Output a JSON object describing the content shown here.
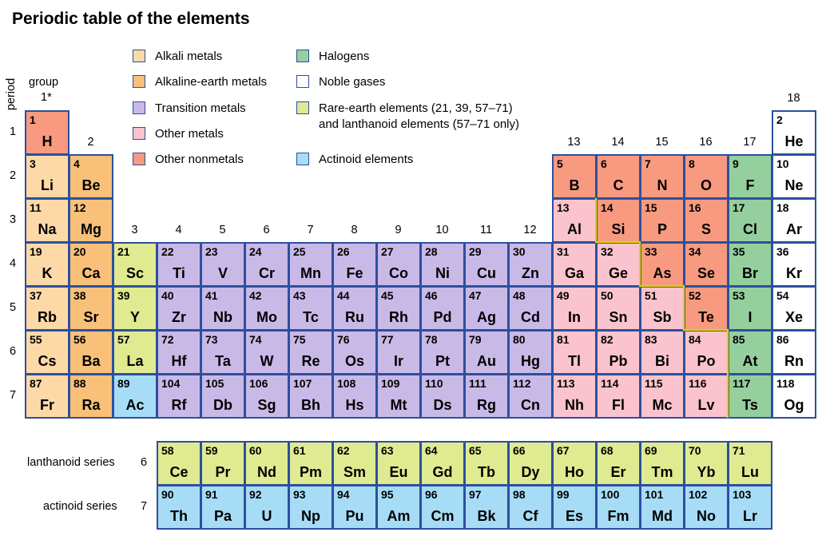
{
  "title": "Periodic table of the elements",
  "axis": {
    "period_label": "period",
    "group_label": "group",
    "group1_label": "1*"
  },
  "colors": {
    "alkali": "#fdd9a8",
    "alkaline": "#f8c079",
    "transition": "#c9b9e7",
    "other_metal": "#fbc3cd",
    "nonmetal": "#f79a80",
    "halogen": "#95cf9e",
    "noble": "#ffffff",
    "rare_earth": "#e0ea90",
    "actinoid": "#a7dcf6",
    "border": "#2d4f9e",
    "staircase": "#e5d000"
  },
  "legend": [
    {
      "cat": "alkali",
      "label": "Alkali metals"
    },
    {
      "cat": "alkaline",
      "label": "Alkaline-earth metals"
    },
    {
      "cat": "transition",
      "label": "Transition metals"
    },
    {
      "cat": "other_metal",
      "label": "Other metals"
    },
    {
      "cat": "nonmetal",
      "label": "Other nonmetals"
    },
    {
      "cat": "halogen",
      "label": "Halogens"
    },
    {
      "cat": "noble",
      "label": "Noble gases"
    },
    {
      "cat": "rare_earth",
      "label": "Rare-earth elements (21, 39, 57–71)",
      "label2": "and lanthanoid elements (57–71 only)"
    },
    {
      "cat": "actinoid",
      "label": "Actinoid elements"
    }
  ],
  "group_labels": [
    "2",
    "3",
    "4",
    "5",
    "6",
    "7",
    "8",
    "9",
    "10",
    "11",
    "12",
    "13",
    "14",
    "15",
    "16",
    "17",
    "18"
  ],
  "period_labels": [
    "1",
    "2",
    "3",
    "4",
    "5",
    "6",
    "7"
  ],
  "series_labels": {
    "lanthanoid": "lanthanoid series",
    "lanthanoid_period": "6",
    "actinoid": "actinoid series",
    "actinoid_period": "7"
  },
  "elements": [
    {
      "n": 1,
      "s": "H",
      "row": 1,
      "col": 1,
      "cat": "nonmetal"
    },
    {
      "n": 2,
      "s": "He",
      "row": 1,
      "col": 18,
      "cat": "noble"
    },
    {
      "n": 3,
      "s": "Li",
      "row": 2,
      "col": 1,
      "cat": "alkali"
    },
    {
      "n": 4,
      "s": "Be",
      "row": 2,
      "col": 2,
      "cat": "alkaline"
    },
    {
      "n": 5,
      "s": "B",
      "row": 2,
      "col": 13,
      "cat": "nonmetal"
    },
    {
      "n": 6,
      "s": "C",
      "row": 2,
      "col": 14,
      "cat": "nonmetal"
    },
    {
      "n": 7,
      "s": "N",
      "row": 2,
      "col": 15,
      "cat": "nonmetal"
    },
    {
      "n": 8,
      "s": "O",
      "row": 2,
      "col": 16,
      "cat": "nonmetal"
    },
    {
      "n": 9,
      "s": "F",
      "row": 2,
      "col": 17,
      "cat": "halogen"
    },
    {
      "n": 10,
      "s": "Ne",
      "row": 2,
      "col": 18,
      "cat": "noble"
    },
    {
      "n": 11,
      "s": "Na",
      "row": 3,
      "col": 1,
      "cat": "alkali"
    },
    {
      "n": 12,
      "s": "Mg",
      "row": 3,
      "col": 2,
      "cat": "alkaline"
    },
    {
      "n": 13,
      "s": "Al",
      "row": 3,
      "col": 13,
      "cat": "other_metal"
    },
    {
      "n": 14,
      "s": "Si",
      "row": 3,
      "col": 14,
      "cat": "nonmetal"
    },
    {
      "n": 15,
      "s": "P",
      "row": 3,
      "col": 15,
      "cat": "nonmetal"
    },
    {
      "n": 16,
      "s": "S",
      "row": 3,
      "col": 16,
      "cat": "nonmetal"
    },
    {
      "n": 17,
      "s": "Cl",
      "row": 3,
      "col": 17,
      "cat": "halogen"
    },
    {
      "n": 18,
      "s": "Ar",
      "row": 3,
      "col": 18,
      "cat": "noble"
    },
    {
      "n": 19,
      "s": "K",
      "row": 4,
      "col": 1,
      "cat": "alkali"
    },
    {
      "n": 20,
      "s": "Ca",
      "row": 4,
      "col": 2,
      "cat": "alkaline"
    },
    {
      "n": 21,
      "s": "Sc",
      "row": 4,
      "col": 3,
      "cat": "rare_earth"
    },
    {
      "n": 22,
      "s": "Ti",
      "row": 4,
      "col": 4,
      "cat": "transition"
    },
    {
      "n": 23,
      "s": "V",
      "row": 4,
      "col": 5,
      "cat": "transition"
    },
    {
      "n": 24,
      "s": "Cr",
      "row": 4,
      "col": 6,
      "cat": "transition"
    },
    {
      "n": 25,
      "s": "Mn",
      "row": 4,
      "col": 7,
      "cat": "transition"
    },
    {
      "n": 26,
      "s": "Fe",
      "row": 4,
      "col": 8,
      "cat": "transition"
    },
    {
      "n": 27,
      "s": "Co",
      "row": 4,
      "col": 9,
      "cat": "transition"
    },
    {
      "n": 28,
      "s": "Ni",
      "row": 4,
      "col": 10,
      "cat": "transition"
    },
    {
      "n": 29,
      "s": "Cu",
      "row": 4,
      "col": 11,
      "cat": "transition"
    },
    {
      "n": 30,
      "s": "Zn",
      "row": 4,
      "col": 12,
      "cat": "transition"
    },
    {
      "n": 31,
      "s": "Ga",
      "row": 4,
      "col": 13,
      "cat": "other_metal"
    },
    {
      "n": 32,
      "s": "Ge",
      "row": 4,
      "col": 14,
      "cat": "other_metal"
    },
    {
      "n": 33,
      "s": "As",
      "row": 4,
      "col": 15,
      "cat": "nonmetal"
    },
    {
      "n": 34,
      "s": "Se",
      "row": 4,
      "col": 16,
      "cat": "nonmetal"
    },
    {
      "n": 35,
      "s": "Br",
      "row": 4,
      "col": 17,
      "cat": "halogen"
    },
    {
      "n": 36,
      "s": "Kr",
      "row": 4,
      "col": 18,
      "cat": "noble"
    },
    {
      "n": 37,
      "s": "Rb",
      "row": 5,
      "col": 1,
      "cat": "alkali"
    },
    {
      "n": 38,
      "s": "Sr",
      "row": 5,
      "col": 2,
      "cat": "alkaline"
    },
    {
      "n": 39,
      "s": "Y",
      "row": 5,
      "col": 3,
      "cat": "rare_earth"
    },
    {
      "n": 40,
      "s": "Zr",
      "row": 5,
      "col": 4,
      "cat": "transition"
    },
    {
      "n": 41,
      "s": "Nb",
      "row": 5,
      "col": 5,
      "cat": "transition"
    },
    {
      "n": 42,
      "s": "Mo",
      "row": 5,
      "col": 6,
      "cat": "transition"
    },
    {
      "n": 43,
      "s": "Tc",
      "row": 5,
      "col": 7,
      "cat": "transition"
    },
    {
      "n": 44,
      "s": "Ru",
      "row": 5,
      "col": 8,
      "cat": "transition"
    },
    {
      "n": 45,
      "s": "Rh",
      "row": 5,
      "col": 9,
      "cat": "transition"
    },
    {
      "n": 46,
      "s": "Pd",
      "row": 5,
      "col": 10,
      "cat": "transition"
    },
    {
      "n": 47,
      "s": "Ag",
      "row": 5,
      "col": 11,
      "cat": "transition"
    },
    {
      "n": 48,
      "s": "Cd",
      "row": 5,
      "col": 12,
      "cat": "transition"
    },
    {
      "n": 49,
      "s": "In",
      "row": 5,
      "col": 13,
      "cat": "other_metal"
    },
    {
      "n": 50,
      "s": "Sn",
      "row": 5,
      "col": 14,
      "cat": "other_metal"
    },
    {
      "n": 51,
      "s": "Sb",
      "row": 5,
      "col": 15,
      "cat": "other_metal"
    },
    {
      "n": 52,
      "s": "Te",
      "row": 5,
      "col": 16,
      "cat": "nonmetal"
    },
    {
      "n": 53,
      "s": "I",
      "row": 5,
      "col": 17,
      "cat": "halogen"
    },
    {
      "n": 54,
      "s": "Xe",
      "row": 5,
      "col": 18,
      "cat": "noble"
    },
    {
      "n": 55,
      "s": "Cs",
      "row": 6,
      "col": 1,
      "cat": "alkali"
    },
    {
      "n": 56,
      "s": "Ba",
      "row": 6,
      "col": 2,
      "cat": "alkaline"
    },
    {
      "n": 57,
      "s": "La",
      "row": 6,
      "col": 3,
      "cat": "rare_earth"
    },
    {
      "n": 72,
      "s": "Hf",
      "row": 6,
      "col": 4,
      "cat": "transition"
    },
    {
      "n": 73,
      "s": "Ta",
      "row": 6,
      "col": 5,
      "cat": "transition"
    },
    {
      "n": 74,
      "s": "W",
      "row": 6,
      "col": 6,
      "cat": "transition"
    },
    {
      "n": 75,
      "s": "Re",
      "row": 6,
      "col": 7,
      "cat": "transition"
    },
    {
      "n": 76,
      "s": "Os",
      "row": 6,
      "col": 8,
      "cat": "transition"
    },
    {
      "n": 77,
      "s": "Ir",
      "row": 6,
      "col": 9,
      "cat": "transition"
    },
    {
      "n": 78,
      "s": "Pt",
      "row": 6,
      "col": 10,
      "cat": "transition"
    },
    {
      "n": 79,
      "s": "Au",
      "row": 6,
      "col": 11,
      "cat": "transition"
    },
    {
      "n": 80,
      "s": "Hg",
      "row": 6,
      "col": 12,
      "cat": "transition"
    },
    {
      "n": 81,
      "s": "Tl",
      "row": 6,
      "col": 13,
      "cat": "other_metal"
    },
    {
      "n": 82,
      "s": "Pb",
      "row": 6,
      "col": 14,
      "cat": "other_metal"
    },
    {
      "n": 83,
      "s": "Bi",
      "row": 6,
      "col": 15,
      "cat": "other_metal"
    },
    {
      "n": 84,
      "s": "Po",
      "row": 6,
      "col": 16,
      "cat": "other_metal"
    },
    {
      "n": 85,
      "s": "At",
      "row": 6,
      "col": 17,
      "cat": "halogen"
    },
    {
      "n": 86,
      "s": "Rn",
      "row": 6,
      "col": 18,
      "cat": "noble"
    },
    {
      "n": 87,
      "s": "Fr",
      "row": 7,
      "col": 1,
      "cat": "alkali"
    },
    {
      "n": 88,
      "s": "Ra",
      "row": 7,
      "col": 2,
      "cat": "alkaline"
    },
    {
      "n": 89,
      "s": "Ac",
      "row": 7,
      "col": 3,
      "cat": "actinoid"
    },
    {
      "n": 104,
      "s": "Rf",
      "row": 7,
      "col": 4,
      "cat": "transition"
    },
    {
      "n": 105,
      "s": "Db",
      "row": 7,
      "col": 5,
      "cat": "transition"
    },
    {
      "n": 106,
      "s": "Sg",
      "row": 7,
      "col": 6,
      "cat": "transition"
    },
    {
      "n": 107,
      "s": "Bh",
      "row": 7,
      "col": 7,
      "cat": "transition"
    },
    {
      "n": 108,
      "s": "Hs",
      "row": 7,
      "col": 8,
      "cat": "transition"
    },
    {
      "n": 109,
      "s": "Mt",
      "row": 7,
      "col": 9,
      "cat": "transition"
    },
    {
      "n": 110,
      "s": "Ds",
      "row": 7,
      "col": 10,
      "cat": "transition"
    },
    {
      "n": 111,
      "s": "Rg",
      "row": 7,
      "col": 11,
      "cat": "transition"
    },
    {
      "n": 112,
      "s": "Cn",
      "row": 7,
      "col": 12,
      "cat": "transition"
    },
    {
      "n": 113,
      "s": "Nh",
      "row": 7,
      "col": 13,
      "cat": "other_metal"
    },
    {
      "n": 114,
      "s": "Fl",
      "row": 7,
      "col": 14,
      "cat": "other_metal"
    },
    {
      "n": 115,
      "s": "Mc",
      "row": 7,
      "col": 15,
      "cat": "other_metal"
    },
    {
      "n": 116,
      "s": "Lv",
      "row": 7,
      "col": 16,
      "cat": "other_metal"
    },
    {
      "n": 117,
      "s": "Ts",
      "row": 7,
      "col": 17,
      "cat": "halogen"
    },
    {
      "n": 118,
      "s": "Og",
      "row": 7,
      "col": 18,
      "cat": "noble"
    },
    {
      "n": 58,
      "s": "Ce",
      "row": "La",
      "col": 4,
      "cat": "rare_earth"
    },
    {
      "n": 59,
      "s": "Pr",
      "row": "La",
      "col": 5,
      "cat": "rare_earth"
    },
    {
      "n": 60,
      "s": "Nd",
      "row": "La",
      "col": 6,
      "cat": "rare_earth"
    },
    {
      "n": 61,
      "s": "Pm",
      "row": "La",
      "col": 7,
      "cat": "rare_earth"
    },
    {
      "n": 62,
      "s": "Sm",
      "row": "La",
      "col": 8,
      "cat": "rare_earth"
    },
    {
      "n": 63,
      "s": "Eu",
      "row": "La",
      "col": 9,
      "cat": "rare_earth"
    },
    {
      "n": 64,
      "s": "Gd",
      "row": "La",
      "col": 10,
      "cat": "rare_earth"
    },
    {
      "n": 65,
      "s": "Tb",
      "row": "La",
      "col": 11,
      "cat": "rare_earth"
    },
    {
      "n": 66,
      "s": "Dy",
      "row": "La",
      "col": 12,
      "cat": "rare_earth"
    },
    {
      "n": 67,
      "s": "Ho",
      "row": "La",
      "col": 13,
      "cat": "rare_earth"
    },
    {
      "n": 68,
      "s": "Er",
      "row": "La",
      "col": 14,
      "cat": "rare_earth"
    },
    {
      "n": 69,
      "s": "Tm",
      "row": "La",
      "col": 15,
      "cat": "rare_earth"
    },
    {
      "n": 70,
      "s": "Yb",
      "row": "La",
      "col": 16,
      "cat": "rare_earth"
    },
    {
      "n": 71,
      "s": "Lu",
      "row": "La",
      "col": 17,
      "cat": "rare_earth"
    },
    {
      "n": 90,
      "s": "Th",
      "row": "Ac",
      "col": 4,
      "cat": "actinoid"
    },
    {
      "n": 91,
      "s": "Pa",
      "row": "Ac",
      "col": 5,
      "cat": "actinoid"
    },
    {
      "n": 92,
      "s": "U",
      "row": "Ac",
      "col": 6,
      "cat": "actinoid"
    },
    {
      "n": 93,
      "s": "Np",
      "row": "Ac",
      "col": 7,
      "cat": "actinoid"
    },
    {
      "n": 94,
      "s": "Pu",
      "row": "Ac",
      "col": 8,
      "cat": "actinoid"
    },
    {
      "n": 95,
      "s": "Am",
      "row": "Ac",
      "col": 9,
      "cat": "actinoid"
    },
    {
      "n": 96,
      "s": "Cm",
      "row": "Ac",
      "col": 10,
      "cat": "actinoid"
    },
    {
      "n": 97,
      "s": "Bk",
      "row": "Ac",
      "col": 11,
      "cat": "actinoid"
    },
    {
      "n": 98,
      "s": "Cf",
      "row": "Ac",
      "col": 12,
      "cat": "actinoid"
    },
    {
      "n": 99,
      "s": "Es",
      "row": "Ac",
      "col": 13,
      "cat": "actinoid"
    },
    {
      "n": 100,
      "s": "Fm",
      "row": "Ac",
      "col": 14,
      "cat": "actinoid"
    },
    {
      "n": 101,
      "s": "Md",
      "row": "Ac",
      "col": 15,
      "cat": "actinoid"
    },
    {
      "n": 102,
      "s": "No",
      "row": "Ac",
      "col": 16,
      "cat": "actinoid"
    },
    {
      "n": 103,
      "s": "Lr",
      "row": "Ac",
      "col": 17,
      "cat": "actinoid"
    }
  ]
}
